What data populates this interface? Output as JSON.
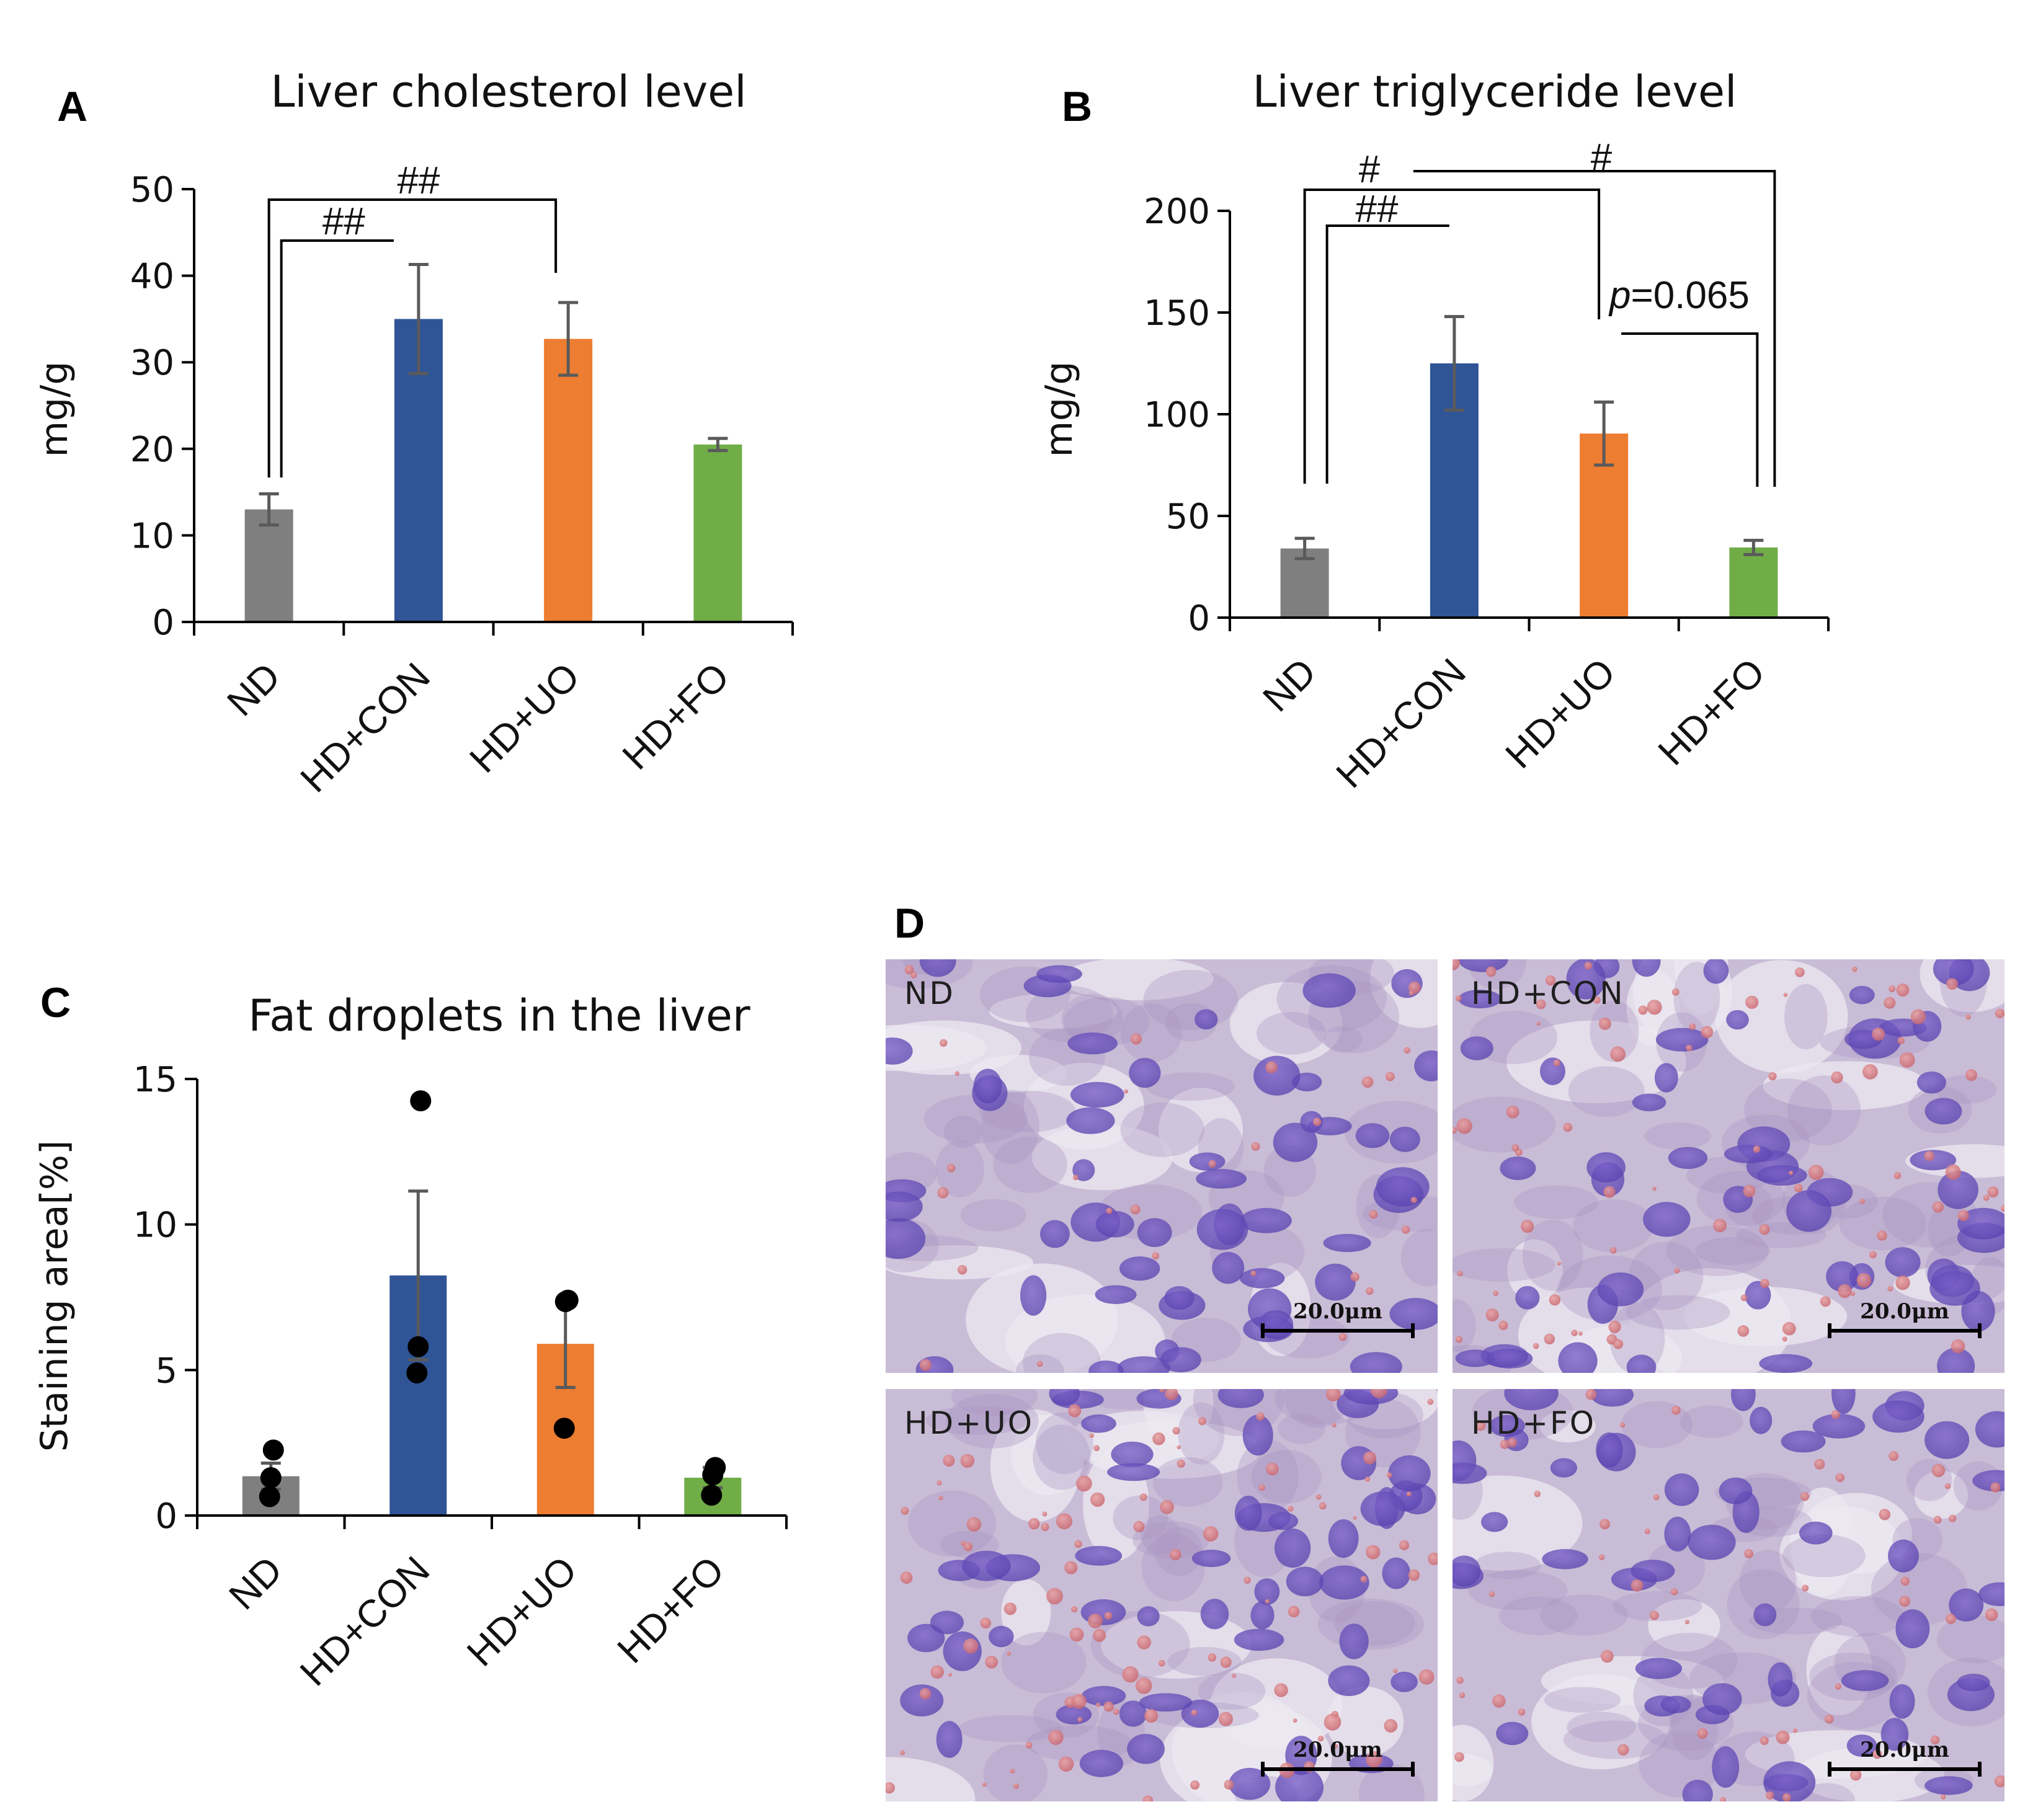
{
  "chart_data": [
    {
      "panel": "A",
      "type": "bar",
      "title": "Liver cholesterol level",
      "ylabel": "mg/g",
      "ylim": [
        0,
        50
      ],
      "yticks": [
        0,
        10,
        20,
        30,
        40,
        50
      ],
      "categories": [
        "ND",
        "HD+CON",
        "HD+UO",
        "HD+FO"
      ],
      "values": [
        13,
        35,
        32.7,
        20.5
      ],
      "errors": [
        1.8,
        6.3,
        4.2,
        0.7
      ],
      "colors": [
        "#7f7f7f",
        "#2f5597",
        "#ed7d31",
        "#70ad47"
      ],
      "annotations": [
        {
          "label": "##",
          "from": 0,
          "to": 1
        },
        {
          "label": "##",
          "from": 0,
          "to": 2
        }
      ]
    },
    {
      "panel": "B",
      "type": "bar",
      "title": "Liver triglyceride level",
      "ylabel": "mg/g",
      "ylim": [
        0,
        200
      ],
      "yticks": [
        0,
        50,
        100,
        150,
        200
      ],
      "categories": [
        "ND",
        "HD+CON",
        "HD+UO",
        "HD+FO"
      ],
      "values": [
        34,
        125,
        90.5,
        34.5
      ],
      "errors": [
        5,
        23,
        15.5,
        3.5
      ],
      "colors": [
        "#7f7f7f",
        "#2f5597",
        "#ed7d31",
        "#70ad47"
      ],
      "annotations": [
        {
          "label": "#",
          "from": 0,
          "to": 2
        },
        {
          "label": "##",
          "from": 0,
          "to": 1
        },
        {
          "label": "#",
          "from": 1,
          "to": 3
        },
        {
          "label": "p=0.065",
          "p_prefix": "p",
          "p_rest": "=0.065",
          "from": 2,
          "to": 3
        }
      ]
    },
    {
      "panel": "C",
      "type": "bar",
      "title": "Fat droplets in the liver",
      "ylabel": "Staining area[%]",
      "ylim": [
        0,
        15
      ],
      "yticks": [
        0,
        5,
        10,
        15
      ],
      "categories": [
        "ND",
        "HD+CON",
        "HD+UO",
        "HD+FO"
      ],
      "values": [
        1.35,
        8.25,
        5.9,
        1.3
      ],
      "errors": [
        0.45,
        2.9,
        1.5,
        0.35
      ],
      "points": [
        [
          2.25,
          1.3,
          0.65
        ],
        [
          14.25,
          5.8,
          4.9
        ],
        [
          7.4,
          7.35,
          3.0
        ],
        [
          1.65,
          1.4,
          0.7
        ]
      ],
      "colors": [
        "#7f7f7f",
        "#2f5597",
        "#ed7d31",
        "#70ad47"
      ]
    }
  ],
  "panels": {
    "a": "A",
    "b": "B",
    "c": "C",
    "d": "D"
  },
  "micrographs": [
    {
      "label": "ND",
      "scale": "20.0μm"
    },
    {
      "label": "HD+CON",
      "scale": "20.0μm"
    },
    {
      "label": "HD+UO",
      "scale": "20.0μm"
    },
    {
      "label": "HD+FO",
      "scale": "20.0μm"
    }
  ]
}
